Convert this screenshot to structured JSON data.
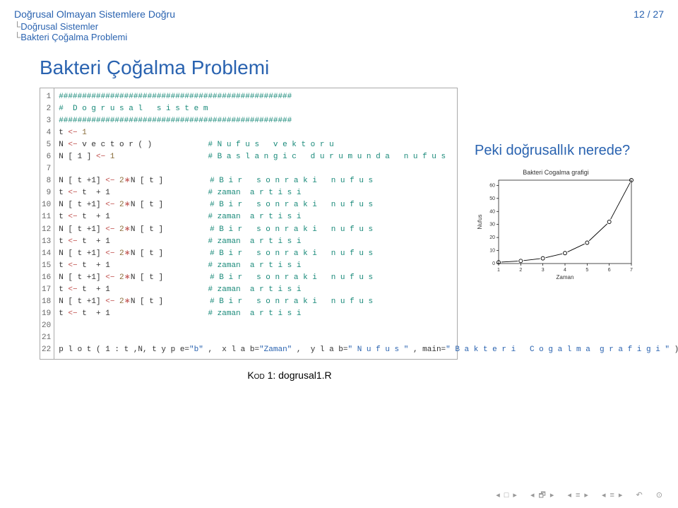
{
  "header": {
    "title": "Doğrusal Olmayan Sistemlere Doğru",
    "page": "12 / 27",
    "bc1": "Doğrusal Sistemler",
    "bc2": "Bakteri Çoğalma Problemi"
  },
  "main_title": "Bakteri Çoğalma Problemi",
  "question": "Peki doğrusallık nerede?",
  "caption_label": "Kod",
  "caption_num": "1: dogrusal1.R",
  "code": {
    "linecount": 22,
    "op": "<−",
    "mul": "∗",
    "hashline": "##################################################",
    "hdr": "#  D o g r u s a l   s i s t e m",
    "t": "t ",
    "one": " 1",
    "N": "N ",
    "vector": " v e c t o r ( )",
    "cm_vec": "# N u f u s   v e k t o r u",
    "N1": "N [ 1 ] ",
    "cm_bas": "# B a s l a n g i c   d u r u m u n d a   n u f u s",
    "Nt1": "N [ t +1] ",
    "twoNt": " 2",
    "Nidx": "N [ t ]",
    "cm_son": "# B i r   s o n r a k i   n u f u s",
    "tplus": " t  + 1",
    "cm_zam": "# zaman  a r t i s i",
    "plot1": "p l o t ( 1 : t ,N, t y p e=",
    "s_b": "\"b\"",
    "plot2": " ,  x l a b=",
    "s_zaman": "\"Zaman\"",
    "plot3": " ,  y l a b=",
    "s_nufus": "\" N u f u s \"",
    "plot4": " , main=",
    "s_main": "\" B a k t e r i   C o g a l m a  g r a f i g i \"",
    "plot5": " )"
  },
  "chart": {
    "title": "Bakteri Cogalma grafigi",
    "xlabel": "Zaman",
    "ylabel": "Nufus",
    "x": [
      1,
      2,
      3,
      4,
      5,
      6,
      7
    ],
    "y": [
      1,
      2,
      4,
      8,
      16,
      32,
      64
    ],
    "yticks": [
      0,
      10,
      20,
      30,
      40,
      50,
      60
    ],
    "xlim": [
      1,
      7
    ],
    "ylim": [
      0,
      64
    ],
    "plot_color": "#000000",
    "axis_color": "#000000",
    "label_fontsize": 8,
    "tick_fontsize": 7
  }
}
